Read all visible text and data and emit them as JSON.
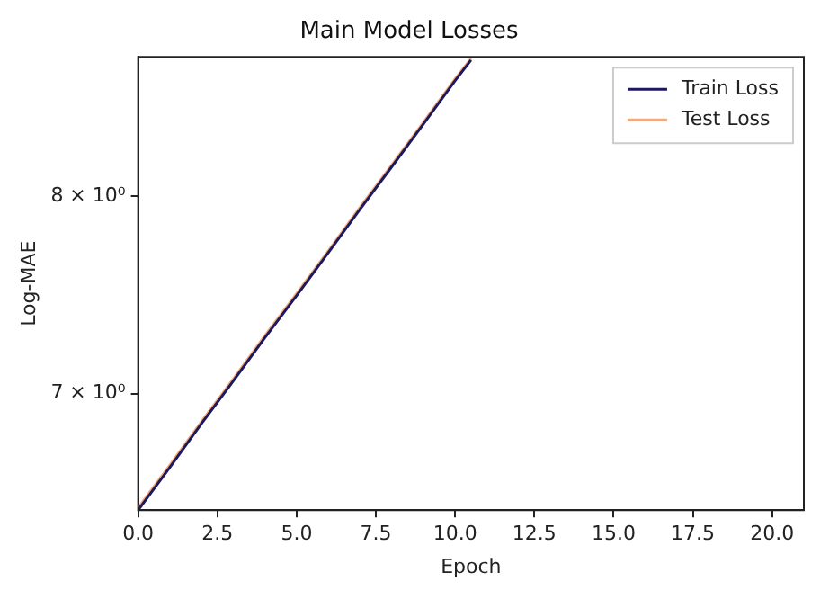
{
  "chart_data": {
    "type": "line",
    "title": "Main Model Losses",
    "xlabel": "Epoch",
    "ylabel": "Log-MAE",
    "log": "y",
    "x": [
      0,
      1,
      2,
      3,
      4,
      5,
      6,
      7,
      8,
      9,
      10,
      10.5
    ],
    "series": [
      {
        "name": "Train Loss",
        "color": "#1c1a5e",
        "values": [
          6.47,
          6.66,
          6.86,
          7.06,
          7.27,
          7.48,
          7.7,
          7.93,
          8.16,
          8.4,
          8.65,
          8.77
        ]
      },
      {
        "name": "Test Loss",
        "color": "#f5a878",
        "values": [
          6.48,
          6.67,
          6.87,
          7.07,
          7.28,
          7.49,
          7.71,
          7.94,
          8.17,
          8.41,
          8.66,
          8.78
        ]
      }
    ],
    "xlim": [
      0,
      21
    ],
    "xticks": [
      {
        "value": 0,
        "label": "0.0"
      },
      {
        "value": 2.5,
        "label": "2.5"
      },
      {
        "value": 5,
        "label": "5.0"
      },
      {
        "value": 7.5,
        "label": "7.5"
      },
      {
        "value": 10,
        "label": "10.0"
      },
      {
        "value": 12.5,
        "label": "12.5"
      },
      {
        "value": 15,
        "label": "15.0"
      },
      {
        "value": 17.5,
        "label": "17.5"
      },
      {
        "value": 20,
        "label": "20.0"
      }
    ],
    "ylim": [
      6.47,
      8.79
    ],
    "yticks": [
      {
        "value": 7,
        "label": "7 × 10⁰"
      },
      {
        "value": 8,
        "label": "8 × 10⁰"
      }
    ],
    "grid": false,
    "legend": "top right",
    "marker": "none",
    "line_style": "solid"
  }
}
